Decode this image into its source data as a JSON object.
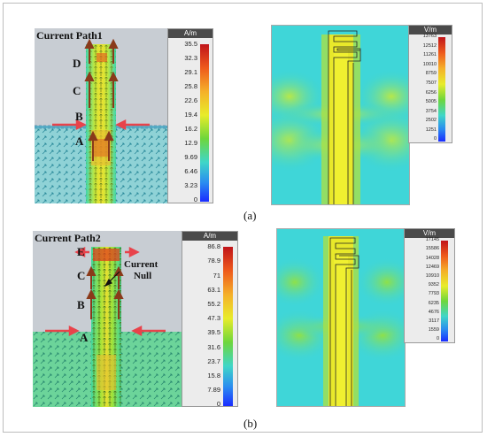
{
  "figure": {
    "caption_a": "(a)",
    "caption_b": "(b)"
  },
  "panel_a_left": {
    "title": "Current Path1",
    "letters": [
      "D",
      "C",
      "B",
      "A"
    ],
    "scale_unit": "A/m",
    "scale_ticks": [
      "35.5",
      "32.3",
      "29.1",
      "25.8",
      "22.6",
      "19.4",
      "16.2",
      "12.9",
      "9.69",
      "6.46",
      "3.23",
      "0"
    ]
  },
  "panel_a_right": {
    "scale_unit": "V/m",
    "scale_ticks": [
      "13763",
      "12512",
      "11261",
      "10010",
      "8759",
      "7507",
      "6256",
      "5005",
      "3754",
      "2502",
      "1251",
      "0"
    ]
  },
  "panel_b_left": {
    "title": "Current Path2",
    "letters": [
      "E",
      "C",
      "B",
      "A"
    ],
    "annotation_line1": "Current",
    "annotation_line2": "Null",
    "scale_unit": "A/m",
    "scale_ticks": [
      "86.8",
      "78.9",
      "71",
      "63.1",
      "55.2",
      "47.3",
      "39.5",
      "31.6",
      "23.7",
      "15.8",
      "7.89",
      "0"
    ]
  },
  "panel_b_right": {
    "scale_unit": "V/m",
    "scale_ticks": [
      "17145",
      "15586",
      "14028",
      "12469",
      "10910",
      "9352",
      "7793",
      "6235",
      "4676",
      "3117",
      "1559",
      "0"
    ]
  },
  "colors": {
    "jet_red": "#d7191c",
    "jet_yellow": "#f5f52a",
    "jet_green": "#4cd13c",
    "jet_cyan": "#3fd6e6",
    "jet_blue": "#1a3cff",
    "arrow_red": "#e8434b",
    "arrow_dark": "#8a3a1a",
    "background_grey": "#c8cdd3"
  }
}
